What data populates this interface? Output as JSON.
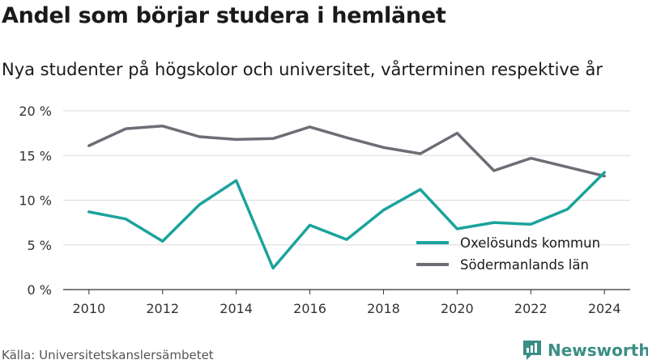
{
  "header": {
    "title": "Andel som börjar studera i hemlänet",
    "subtitle": "Nya studenter på högskolor och universitet, vårterminen respektive år"
  },
  "footer": {
    "source": "Källa: Universitetskanslersämbetet",
    "brand": "Newsworthy",
    "brand_icon": "newsworthy-logo-icon"
  },
  "colors": {
    "accent": "#1ba39c",
    "secondary": "#6e6d76",
    "grid": "#d9d9d9",
    "axis": "#333333",
    "brand": "#3a8f84"
  },
  "chart_data": {
    "type": "line",
    "x": [
      2010,
      2011,
      2012,
      2013,
      2014,
      2015,
      2016,
      2017,
      2018,
      2019,
      2020,
      2021,
      2022,
      2023,
      2024
    ],
    "series": [
      {
        "name": "Oxelösunds kommun",
        "color": "#1ba39c",
        "values": [
          8.7,
          7.9,
          5.4,
          9.5,
          12.2,
          2.4,
          7.2,
          5.6,
          8.9,
          11.2,
          6.8,
          7.5,
          7.3,
          9.0,
          13.1
        ]
      },
      {
        "name": "Södermanlands län",
        "color": "#6e6d76",
        "values": [
          16.1,
          18.0,
          18.3,
          17.1,
          16.8,
          16.9,
          18.2,
          17.0,
          15.9,
          15.2,
          17.5,
          13.3,
          14.7,
          13.7,
          12.7
        ]
      }
    ],
    "xticks": [
      "2010",
      "2012",
      "2014",
      "2016",
      "2018",
      "2020",
      "2022",
      "2024"
    ],
    "xtick_values": [
      2010,
      2012,
      2014,
      2016,
      2018,
      2020,
      2022,
      2024
    ],
    "yticks": [
      "0 %",
      "5 %",
      "10 %",
      "15 %",
      "20 %"
    ],
    "ytick_values": [
      0,
      5,
      10,
      15,
      20
    ],
    "ylim": [
      0,
      20
    ],
    "xlim": [
      2009.3,
      2024.7
    ],
    "grid": true,
    "legend_position": "bottom-right",
    "xlabel": "",
    "ylabel": ""
  }
}
